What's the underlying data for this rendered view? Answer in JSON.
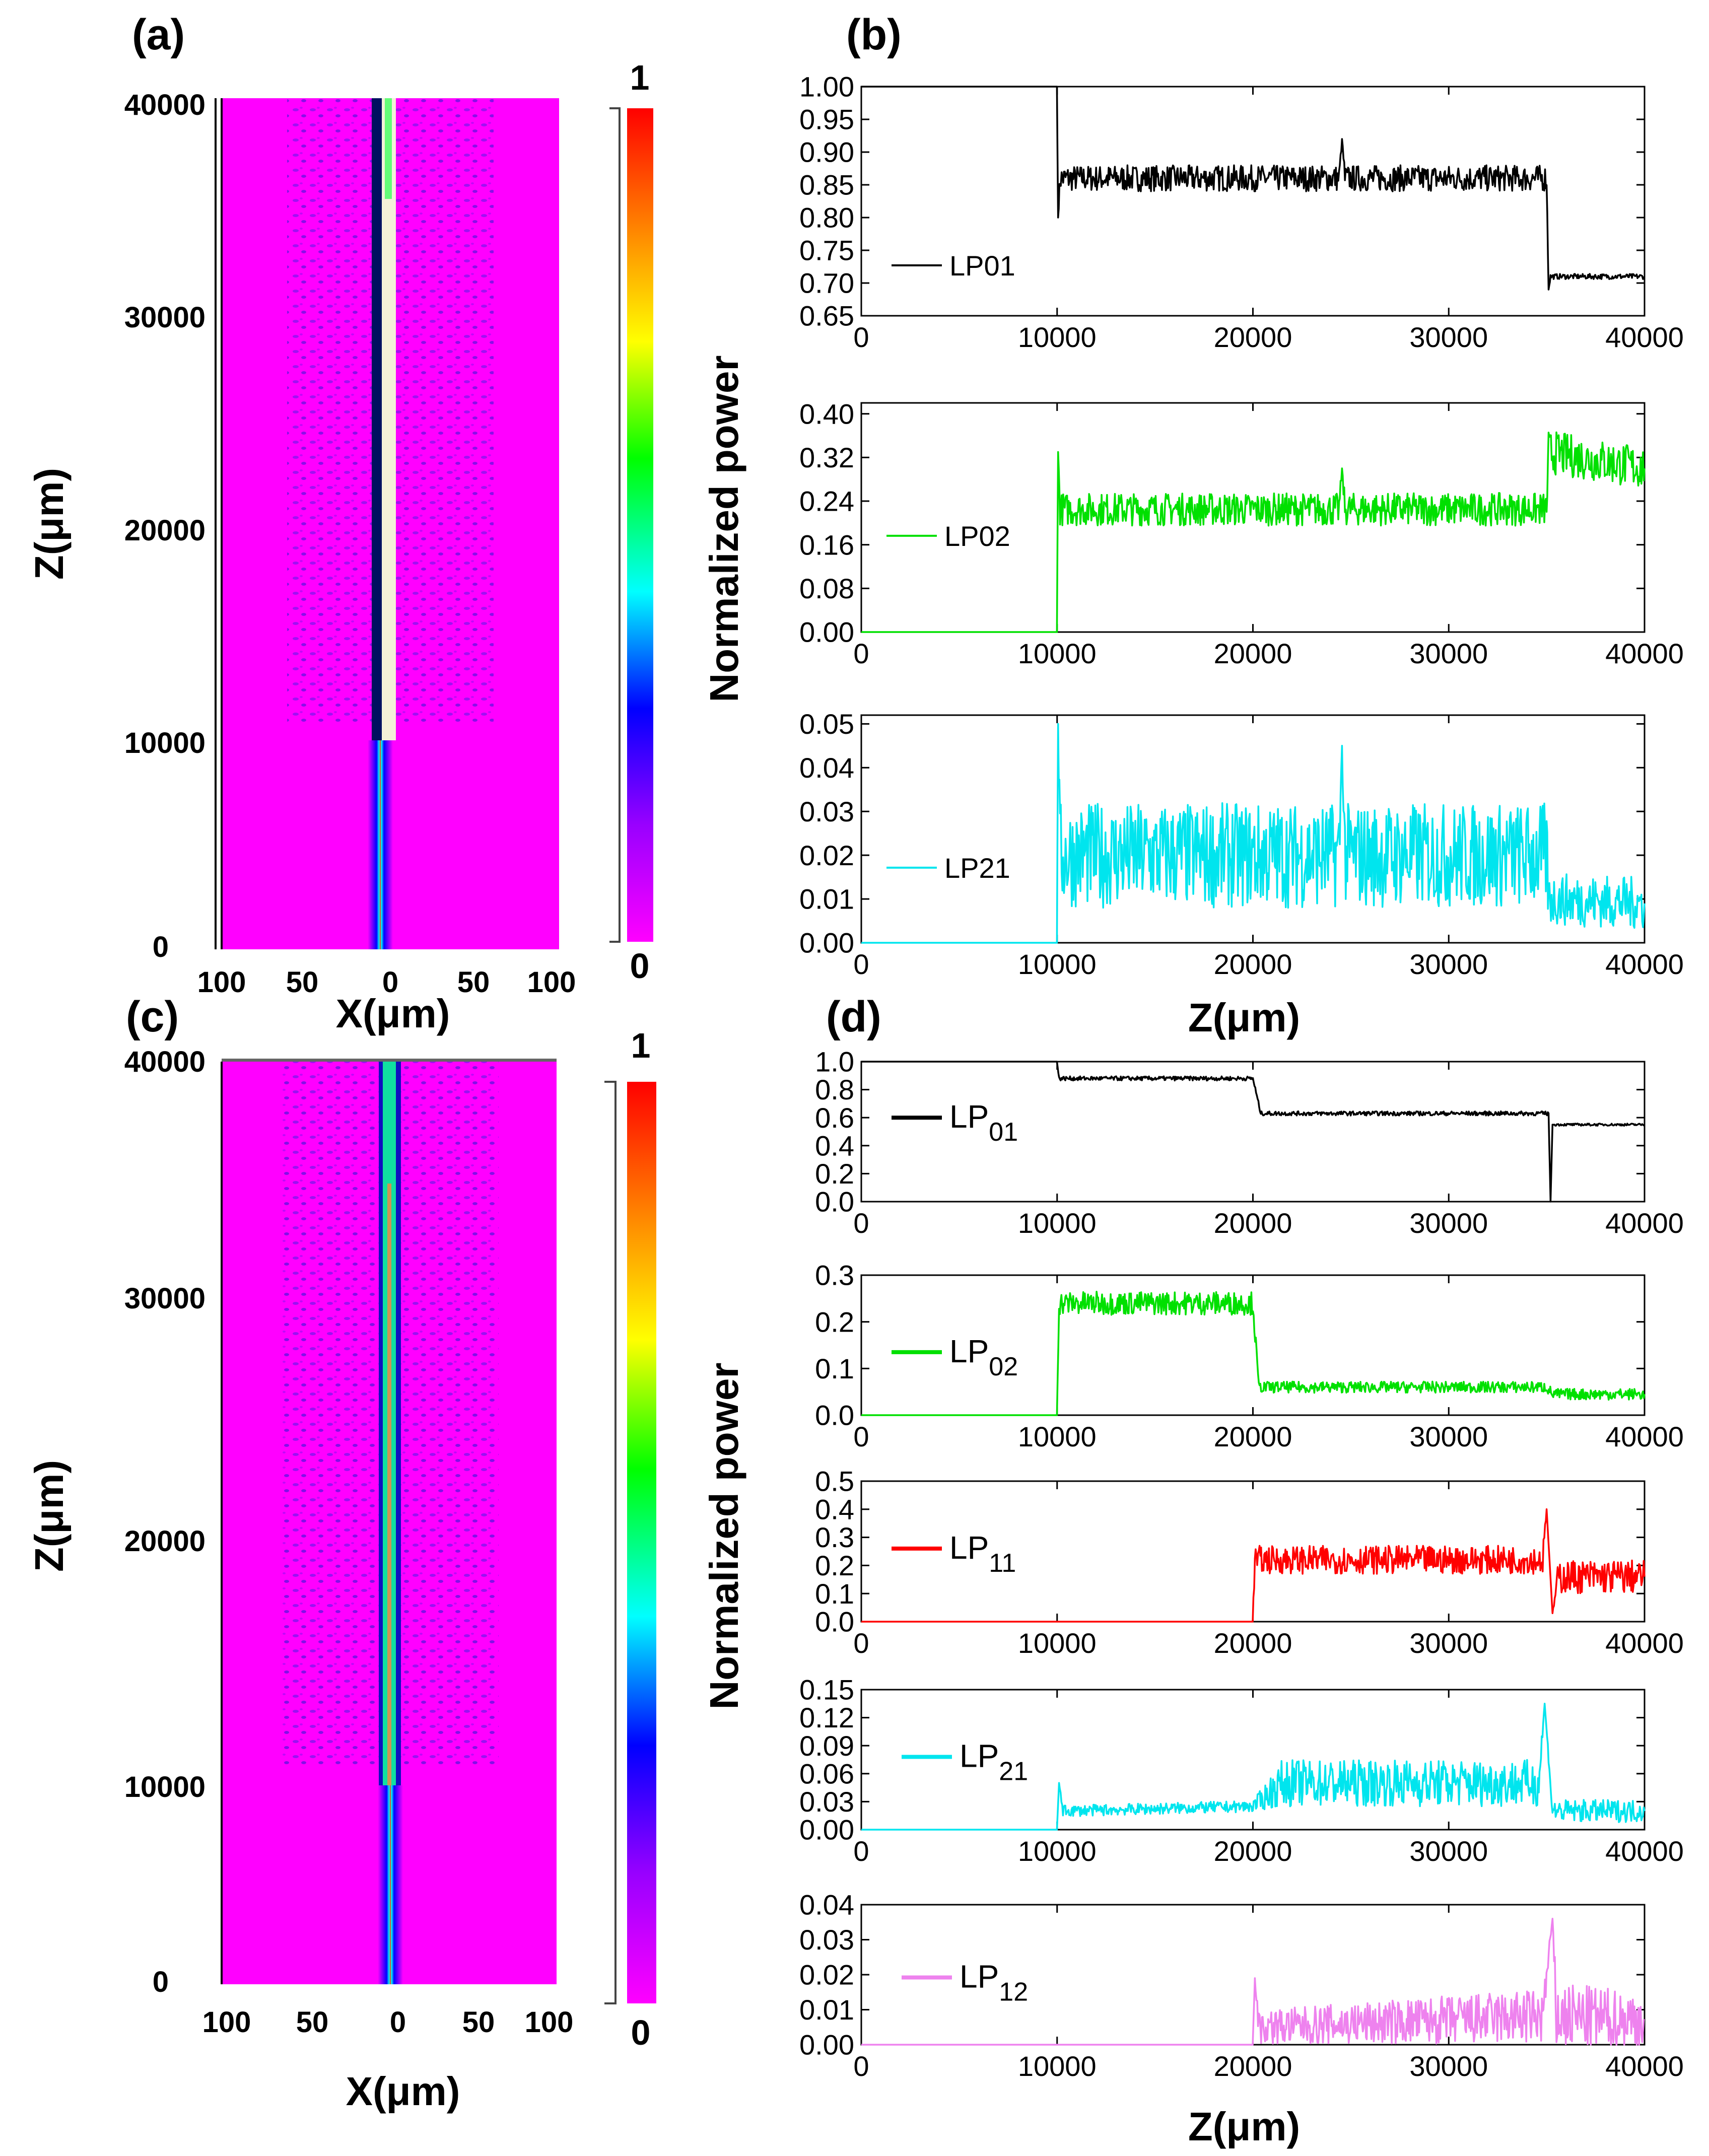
{
  "panels": {
    "a": {
      "label": "(a)",
      "ylabel": "Z(μm)",
      "xlabel": "X(μm)",
      "yticks": [
        "0",
        "10000",
        "20000",
        "30000",
        "40000"
      ],
      "xticks": [
        "100",
        "50",
        "0",
        "50",
        "100"
      ],
      "colorbar": {
        "max": "1",
        "min": "0"
      }
    },
    "c": {
      "label": "(c)",
      "ylabel": "Z(μm)",
      "xlabel": "X(μm)",
      "yticks": [
        "0",
        "10000",
        "20000",
        "30000",
        "40000"
      ],
      "xticks": [
        "100",
        "50",
        "0",
        "50",
        "100"
      ],
      "colorbar": {
        "max": "1",
        "min": "0"
      }
    },
    "b": {
      "label": "(b)",
      "ylabel": "Normalized power",
      "xlabel": "Z(μm)"
    },
    "d": {
      "label": "(d)",
      "ylabel": "Normalized power",
      "xlabel": "Z(μm)"
    }
  },
  "chart_data": [
    {
      "panel": "b",
      "type": "line",
      "legend": "LP01",
      "legend_sub": false,
      "color": "#000000",
      "xlim": [
        0,
        40000
      ],
      "ylim": [
        0.65,
        1.0
      ],
      "xticks": [
        0,
        10000,
        20000,
        30000,
        40000
      ],
      "yticks": [
        0.65,
        0.7,
        0.75,
        0.8,
        0.85,
        0.9,
        0.95,
        1.0
      ],
      "ytick_labels": [
        "0.65",
        "0.70",
        "0.75",
        "0.80",
        "0.85",
        "0.90",
        "0.95",
        "1.00"
      ],
      "x": [
        0,
        9990,
        10050,
        10150,
        24400,
        24550,
        24700,
        35000,
        35100,
        35200,
        40000
      ],
      "y": [
        1.0,
        1.0,
        0.8,
        0.86,
        0.86,
        0.92,
        0.86,
        0.86,
        0.69,
        0.71,
        0.71
      ],
      "noise": [
        0,
        0,
        0,
        0.02,
        0.02,
        0,
        0.02,
        0.02,
        0,
        0.004,
        0.004
      ]
    },
    {
      "panel": "b",
      "type": "line",
      "legend": "LP02",
      "legend_sub": false,
      "color": "#00e000",
      "xlim": [
        0,
        40000
      ],
      "ylim": [
        0,
        0.42
      ],
      "xticks": [
        0,
        10000,
        20000,
        30000,
        40000
      ],
      "yticks": [
        0,
        0.08,
        0.16,
        0.24,
        0.32,
        0.4
      ],
      "ytick_labels": [
        "0.00",
        "0.08",
        "0.16",
        "0.24",
        "0.32",
        "0.40"
      ],
      "x": [
        0,
        9990,
        10050,
        10150,
        24400,
        24550,
        24700,
        35000,
        35100,
        40000
      ],
      "y": [
        0,
        0,
        0.33,
        0.225,
        0.225,
        0.3,
        0.225,
        0.225,
        0.33,
        0.3
      ],
      "noise": [
        0,
        0,
        0,
        0.03,
        0.03,
        0,
        0.03,
        0.03,
        0.04,
        0.04
      ]
    },
    {
      "panel": "b",
      "type": "line",
      "legend": "LP21",
      "legend_sub": false,
      "color": "#00e5ee",
      "xlim": [
        0,
        40000
      ],
      "ylim": [
        0,
        0.052
      ],
      "xticks": [
        0,
        10000,
        20000,
        30000,
        40000
      ],
      "yticks": [
        0,
        0.01,
        0.02,
        0.03,
        0.04,
        0.05
      ],
      "ytick_labels": [
        "0.00",
        "0.01",
        "0.02",
        "0.03",
        "0.04",
        "0.05"
      ],
      "x": [
        0,
        9990,
        10050,
        10150,
        24400,
        24550,
        24700,
        35000,
        35100,
        40000
      ],
      "y": [
        0,
        0,
        0.05,
        0.02,
        0.02,
        0.045,
        0.02,
        0.02,
        0.01,
        0.009
      ],
      "noise": [
        0,
        0,
        0,
        0.012,
        0.012,
        0,
        0.012,
        0.012,
        0.006,
        0.006
      ]
    },
    {
      "panel": "d",
      "type": "line",
      "legend": "LP",
      "legend_subscript": "01",
      "legend_sub": true,
      "color": "#000000",
      "xlim": [
        0,
        40000
      ],
      "ylim": [
        0,
        1.0
      ],
      "xticks": [
        0,
        10000,
        20000,
        30000,
        40000
      ],
      "yticks": [
        0,
        0.2,
        0.4,
        0.6,
        0.8,
        1.0
      ],
      "ytick_labels": [
        "0.0",
        "0.2",
        "0.4",
        "0.6",
        "0.8",
        "1.0"
      ],
      "x": [
        0,
        9990,
        10100,
        20000,
        20400,
        35100,
        35200,
        35300,
        35400,
        40000
      ],
      "y": [
        1.0,
        1.0,
        0.88,
        0.88,
        0.63,
        0.63,
        0.0,
        0.55,
        0.55,
        0.55
      ],
      "noise": [
        0,
        0,
        0.015,
        0.015,
        0.015,
        0.015,
        0,
        0,
        0.008,
        0.008
      ]
    },
    {
      "panel": "d",
      "type": "line",
      "legend": "LP",
      "legend_subscript": "02",
      "legend_sub": true,
      "color": "#00e000",
      "xlim": [
        0,
        40000
      ],
      "ylim": [
        0,
        0.3
      ],
      "xticks": [
        0,
        10000,
        20000,
        30000,
        40000
      ],
      "yticks": [
        0,
        0.1,
        0.2,
        0.3
      ],
      "ytick_labels": [
        "0.0",
        "0.1",
        "0.2",
        "0.3"
      ],
      "x": [
        0,
        9990,
        10100,
        20000,
        20300,
        35000,
        35300,
        40000
      ],
      "y": [
        0,
        0,
        0.24,
        0.24,
        0.06,
        0.06,
        0.045,
        0.045
      ],
      "noise": [
        0,
        0,
        0.025,
        0.025,
        0.012,
        0.012,
        0.012,
        0.012
      ]
    },
    {
      "panel": "d",
      "type": "line",
      "legend": "LP",
      "legend_subscript": "11",
      "legend_sub": true,
      "color": "#ff0000",
      "xlim": [
        0,
        40000
      ],
      "ylim": [
        0,
        0.5
      ],
      "xticks": [
        0,
        10000,
        20000,
        30000,
        40000
      ],
      "yticks": [
        0,
        0.1,
        0.2,
        0.3,
        0.4,
        0.5
      ],
      "ytick_labels": [
        "0.0",
        "0.1",
        "0.2",
        "0.3",
        "0.4",
        "0.5"
      ],
      "x": [
        0,
        19990,
        20100,
        34800,
        35000,
        35300,
        35600,
        40000
      ],
      "y": [
        0,
        0,
        0.22,
        0.22,
        0.4,
        0.03,
        0.16,
        0.16
      ],
      "noise": [
        0,
        0,
        0.05,
        0.05,
        0,
        0,
        0.06,
        0.06
      ]
    },
    {
      "panel": "d",
      "type": "line",
      "legend": "LP",
      "legend_subscript": "21",
      "legend_sub": true,
      "color": "#00e5ee",
      "xlim": [
        0,
        40000
      ],
      "ylim": [
        0,
        0.15
      ],
      "xticks": [
        0,
        10000,
        20000,
        30000,
        40000
      ],
      "yticks": [
        0,
        0.03,
        0.06,
        0.09,
        0.12,
        0.15
      ],
      "ytick_labels": [
        "0.00",
        "0.03",
        "0.06",
        "0.09",
        "0.12",
        "0.15"
      ],
      "x": [
        0,
        9990,
        10100,
        10300,
        20000,
        21500,
        34600,
        34900,
        35300,
        40000
      ],
      "y": [
        0,
        0,
        0.05,
        0.02,
        0.025,
        0.05,
        0.05,
        0.135,
        0.02,
        0.02
      ],
      "noise": [
        0,
        0,
        0,
        0.006,
        0.006,
        0.025,
        0.025,
        0,
        0.012,
        0.012
      ]
    },
    {
      "panel": "d",
      "type": "line",
      "legend": "LP",
      "legend_subscript": "12",
      "legend_sub": true,
      "color": "#ee82ee",
      "xlim": [
        0,
        40000
      ],
      "ylim": [
        0,
        0.04
      ],
      "xticks": [
        0,
        10000,
        20000,
        30000,
        40000
      ],
      "yticks": [
        0,
        0.01,
        0.02,
        0.03,
        0.04
      ],
      "ytick_labels": [
        "0.00",
        "0.01",
        "0.02",
        "0.03",
        "0.04"
      ],
      "x": [
        0,
        19990,
        20100,
        20300,
        34800,
        35300,
        35500,
        40000
      ],
      "y": [
        0,
        0,
        0.019,
        0.005,
        0.008,
        0.036,
        0.008,
        0.007
      ],
      "noise": [
        0,
        0,
        0,
        0.005,
        0.008,
        0,
        0.01,
        0.008
      ]
    }
  ]
}
